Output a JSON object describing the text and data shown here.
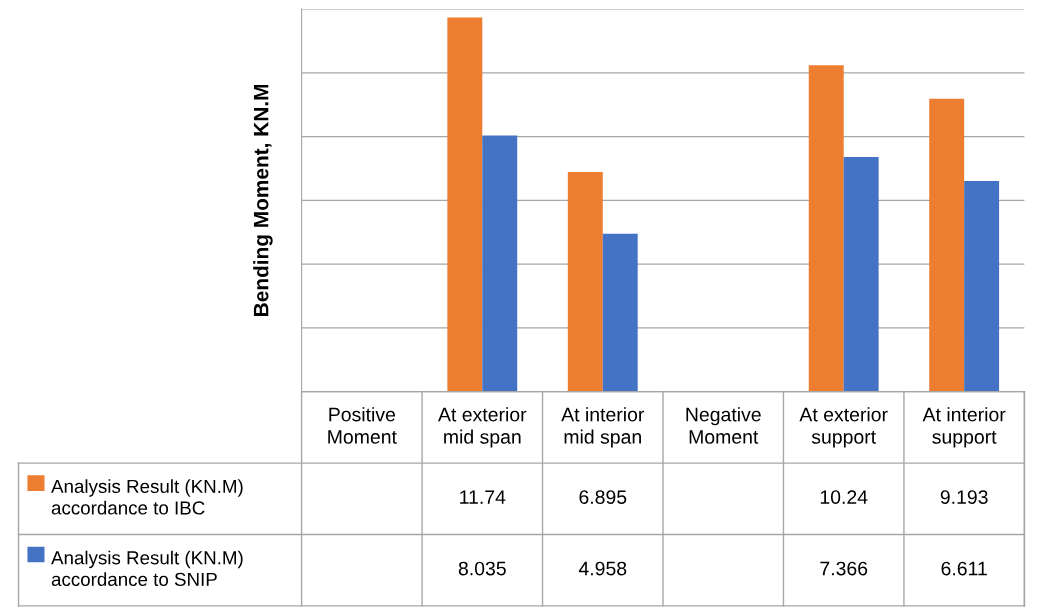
{
  "chart_data": {
    "type": "bar",
    "ylabel": "Bending Moment, KN.M",
    "categories": [
      "Positive\nMoment",
      "At exterior\nmid span",
      "At interior\nmid span",
      "Negative\nMoment",
      "At exterior\nsupport",
      "At interior\nsupport"
    ],
    "series": [
      {
        "name": "Analysis Result (KN.M)\naccordance to IBC",
        "color": "#ed7d31",
        "values": [
          null,
          11.74,
          6.895,
          null,
          10.24,
          9.193
        ]
      },
      {
        "name": "Analysis Result (KN.M)\naccordance to SNIP",
        "color": "#4472c4",
        "values": [
          null,
          8.035,
          4.958,
          null,
          7.366,
          6.611
        ]
      }
    ],
    "ylim": [
      0,
      12
    ],
    "yticks": [
      {
        "value": 0,
        "label": null
      },
      {
        "value": 2,
        "label": null
      },
      {
        "value": 4,
        "label": null
      },
      {
        "value": 6,
        "label": null
      },
      {
        "value": 8,
        "label": null
      },
      {
        "value": 10,
        "label": null
      },
      {
        "value": 12,
        "label": null
      }
    ],
    "tick_labels": "x",
    "grid": "y",
    "legend": "bottom left",
    "data_labels": true
  }
}
